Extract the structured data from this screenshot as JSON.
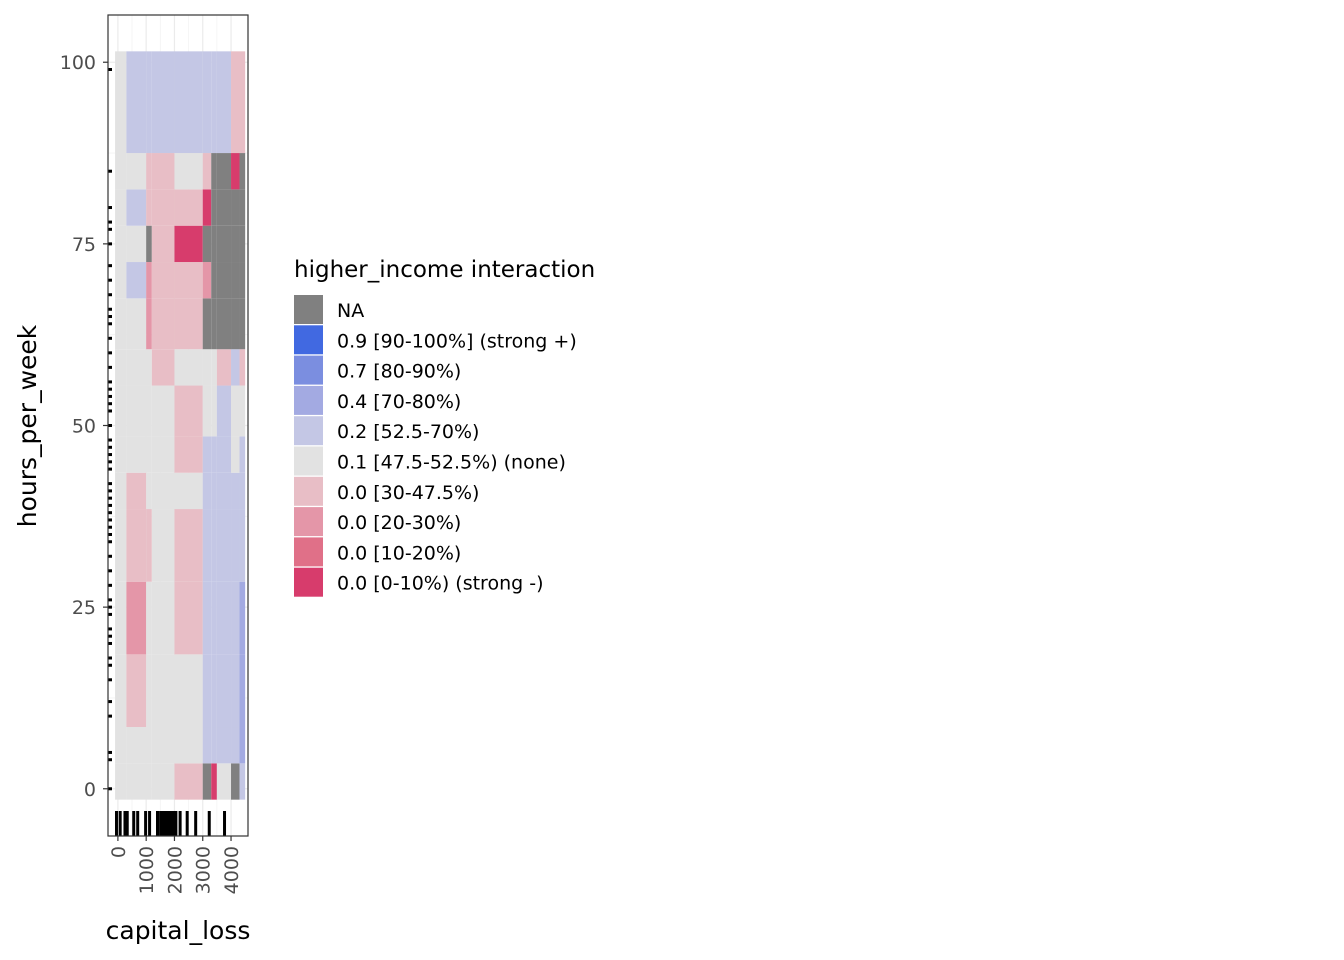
{
  "chart_data": {
    "type": "heatmap",
    "xlabel": "capital_loss",
    "ylabel": "hours_per_week",
    "x_ticks": [
      0,
      1000,
      2000,
      3000,
      4000
    ],
    "y_ticks": [
      0,
      25,
      50,
      75,
      100
    ],
    "xlim": [
      -350,
      4600
    ],
    "ylim": [
      -6.5,
      106.5
    ],
    "grid": true,
    "legend": {
      "title": "higher_income interaction",
      "placement": "right",
      "entries": [
        {
          "label": "NA",
          "color": "#808080"
        },
        {
          "label": "0.9 [90-100%] (strong +)",
          "color": "#4169e1"
        },
        {
          "label": "0.7 [80-90%)",
          "color": "#7b8ee0"
        },
        {
          "label": "0.4 [70-80%)",
          "color": "#a3aae2"
        },
        {
          "label": "0.2 [52.5-70%)",
          "color": "#c4c7e5"
        },
        {
          "label": "0.1 [47.5-52.5%) (none)",
          "color": "#e2e2e2"
        },
        {
          "label": "0.0 [30-47.5%)",
          "color": "#e8bec6"
        },
        {
          "label": "0.0 [20-30%)",
          "color": "#e496a8"
        },
        {
          "label": "0.0 [10-20%)",
          "color": "#e07088"
        },
        {
          "label": "0.0 [0-10%) (strong -)",
          "color": "#d73c6c"
        }
      ]
    },
    "x_bins": [
      [
        -100,
        300
      ],
      [
        300,
        1000
      ],
      [
        1000,
        1200
      ],
      [
        1200,
        2000
      ],
      [
        2000,
        3000
      ],
      [
        3000,
        3300
      ],
      [
        3300,
        3500
      ],
      [
        3500,
        4000
      ],
      [
        4000,
        4300
      ],
      [
        4300,
        4500
      ]
    ],
    "y_bins": [
      [
        -1.5,
        3.5
      ],
      [
        3.5,
        8.5
      ],
      [
        8.5,
        18.5
      ],
      [
        18.5,
        28.5
      ],
      [
        28.5,
        38.5
      ],
      [
        38.5,
        43.5
      ],
      [
        43.5,
        48.5
      ],
      [
        48.5,
        55.5
      ],
      [
        55.5,
        60.5
      ],
      [
        60.5,
        67.5
      ],
      [
        67.5,
        72.5
      ],
      [
        72.5,
        77.5
      ],
      [
        77.5,
        82.5
      ],
      [
        82.5,
        87.5
      ],
      [
        87.5,
        101.5
      ]
    ],
    "cells": [
      [
        "none",
        "none",
        "none",
        "none",
        "0.0 [30-47.5%)",
        "NA",
        "0.0 [0-10%) (strong -)",
        "none",
        "NA",
        "0.2"
      ],
      [
        "none",
        "none",
        "none",
        "none",
        "none",
        "0.2",
        "0.2",
        "0.2",
        "0.2",
        "0.4"
      ],
      [
        "none",
        "0.0 [30-47.5%)",
        "none",
        "none",
        "none",
        "0.2",
        "0.2",
        "0.2",
        "0.2",
        "0.4"
      ],
      [
        "none",
        "0.0 [20-30%)",
        "none",
        "none",
        "0.0 [30-47.5%)",
        "0.2",
        "0.2",
        "0.2",
        "0.2",
        "0.4"
      ],
      [
        "none",
        "0.0 [30-47.5%)",
        "0.0 [30-47.5%)",
        "none",
        "0.0 [30-47.5%)",
        "0.2",
        "0.2",
        "0.2",
        "0.2",
        "0.2"
      ],
      [
        "none",
        "0.0 [30-47.5%)",
        "none",
        "none",
        "none",
        "0.2",
        "0.2",
        "0.2",
        "0.2",
        "0.2"
      ],
      [
        "none",
        "none",
        "none",
        "none",
        "0.0 [30-47.5%)",
        "0.2",
        "0.2",
        "0.2",
        "none",
        "0.2"
      ],
      [
        "none",
        "none",
        "none",
        "none",
        "0.0 [30-47.5%)",
        "none",
        "none",
        "0.2",
        "none",
        "none"
      ],
      [
        "none",
        "none",
        "none",
        "0.0 [30-47.5%)",
        "none",
        "none",
        "none",
        "0.0 [30-47.5%)",
        "0.2",
        "0.0 [30-47.5%)"
      ],
      [
        "none",
        "none",
        "0.0 [20-30%)",
        "0.0 [30-47.5%)",
        "0.0 [30-47.5%)",
        "NA",
        "NA",
        "NA",
        "NA",
        "NA"
      ],
      [
        "none",
        "0.2",
        "0.0 [20-30%)",
        "0.0 [30-47.5%)",
        "0.0 [30-47.5%)",
        "0.0 [20-30%)",
        "NA",
        "NA",
        "NA",
        "NA"
      ],
      [
        "none",
        "none",
        "NA",
        "0.0 [30-47.5%)",
        "0.0 [0-10%) (strong -)",
        "NA",
        "NA",
        "NA",
        "NA",
        "NA"
      ],
      [
        "none",
        "0.2",
        "0.0 [30-47.5%)",
        "0.0 [30-47.5%)",
        "0.0 [30-47.5%)",
        "0.0 [0-10%) (strong -)",
        "NA",
        "NA",
        "NA",
        "NA"
      ],
      [
        "none",
        "none",
        "0.0 [30-47.5%)",
        "0.0 [30-47.5%)",
        "none",
        "0.0 [30-47.5%)",
        "NA",
        "NA",
        "0.0 [0-10%) (strong -)",
        "NA"
      ],
      [
        "none",
        "0.2",
        "0.2",
        "0.2",
        "0.2",
        "0.2",
        "0.2",
        "0.2",
        "0.0 [30-47.5%)",
        "0.0 [30-47.5%)"
      ]
    ],
    "rug_x": [
      -50,
      80,
      250,
      330,
      560,
      700,
      980,
      1120,
      1400,
      1510,
      1560,
      1600,
      1640,
      1680,
      1720,
      1760,
      1800,
      1850,
      1900,
      1980,
      2050,
      2200,
      2450,
      2750,
      3230,
      3770
    ],
    "rug_y": [
      0,
      4,
      5,
      10,
      12,
      15,
      17,
      18,
      20,
      21,
      22,
      24,
      25,
      26,
      28,
      30,
      32,
      34,
      35,
      36,
      37,
      38,
      39,
      40,
      41,
      42,
      44,
      45,
      46,
      47,
      48,
      50,
      52,
      53,
      54,
      55,
      56,
      58,
      60,
      62,
      64,
      65,
      66,
      68,
      70,
      72,
      75,
      77,
      78,
      80,
      85,
      99
    ]
  }
}
